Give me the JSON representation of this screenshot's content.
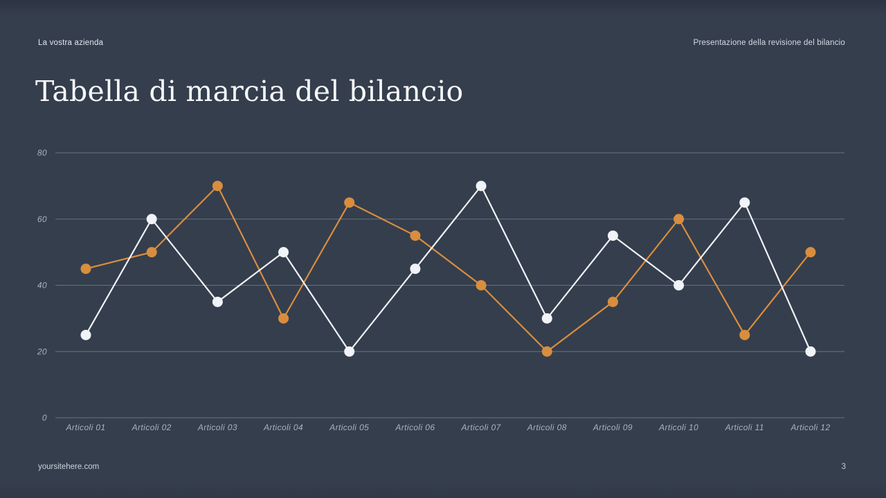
{
  "slide": {
    "company": "La vostra azienda",
    "presentation_title": "Presentazione della revisione del bilancio",
    "title": "Tabella di marcia del bilancio",
    "footer_url": "yoursitehere.com",
    "page_number": "3"
  },
  "colors": {
    "background": "#353e4d",
    "title_text": "#f6f8fa",
    "tick_label": "#aab3c0",
    "gridline": "#aeb8c6",
    "series_white": "#f0f3f7",
    "series_orange": "#d98e3e"
  },
  "chart_data": {
    "type": "line",
    "title": "",
    "xlabel": "",
    "ylabel": "",
    "categories": [
      "Articoli 01",
      "Articoli 02",
      "Articoli 03",
      "Articoli 04",
      "Articoli 05",
      "Articoli 06",
      "Articoli 07",
      "Articoli 08",
      "Articoli 09",
      "Articoli 10",
      "Articoli 11",
      "Articoli 12"
    ],
    "series": [
      {
        "name": "serie-arancione",
        "color": "#d98e3e",
        "values": [
          45,
          50,
          70,
          30,
          65,
          55,
          40,
          20,
          35,
          60,
          25,
          50
        ]
      },
      {
        "name": "serie-bianca",
        "color": "#f0f3f7",
        "values": [
          25,
          60,
          35,
          50,
          20,
          45,
          70,
          30,
          55,
          40,
          65,
          20
        ]
      }
    ],
    "ylim": [
      0,
      80
    ],
    "yticks": [
      0,
      20,
      40,
      60,
      80
    ],
    "grid": true,
    "legend_position": "none",
    "markers": true
  }
}
